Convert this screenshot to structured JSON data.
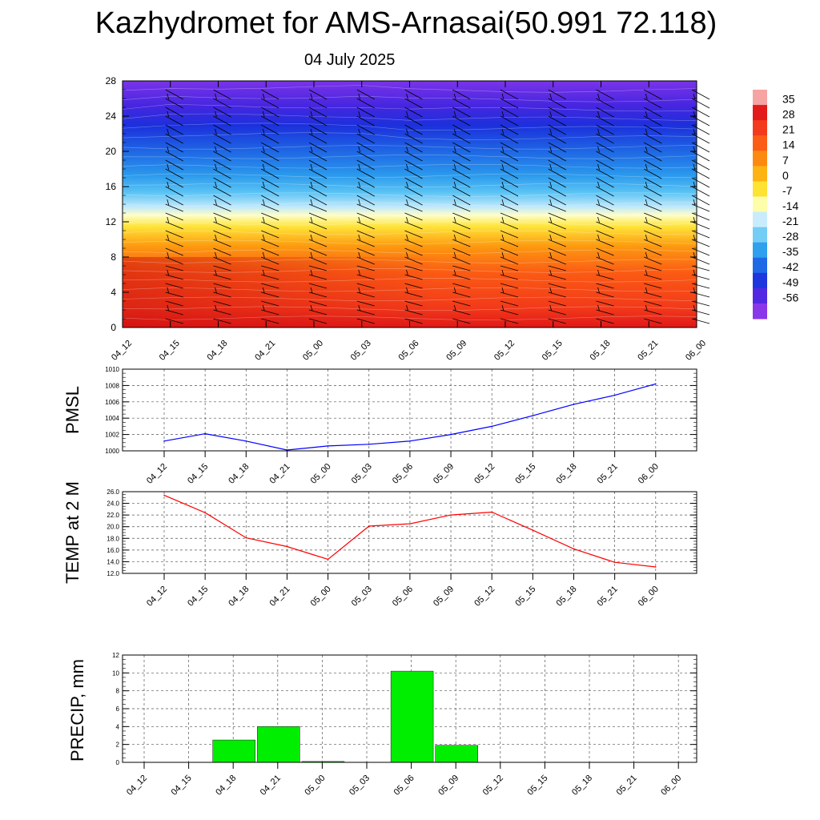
{
  "header": {
    "title": "Kazhydromet for AMS-Arnasai(50.991 72.118)",
    "subtitle": "04 July 2025"
  },
  "time_labels": [
    "04_12",
    "04_15",
    "04_18",
    "04_21",
    "05_00",
    "05_03",
    "05_06",
    "05_09",
    "05_12",
    "05_15",
    "05_18",
    "05_21",
    "06_00"
  ],
  "chart_data": [
    {
      "type": "heatmap",
      "title": "",
      "x": [
        "04_12",
        "04_15",
        "04_18",
        "04_21",
        "05_00",
        "05_03",
        "05_06",
        "05_09",
        "05_12",
        "05_15",
        "05_18",
        "05_21",
        "06_00"
      ],
      "ylim": [
        0,
        28
      ],
      "yticks": [
        0,
        4,
        8,
        12,
        16,
        20,
        24,
        28
      ],
      "colorbar_labels": [
        "35",
        "28",
        "21",
        "14",
        "7",
        "0",
        "-7",
        "-14",
        "-21",
        "-28",
        "-35",
        "-42",
        "-49",
        "-56"
      ],
      "colorbar_colors": [
        "#f5a3a3",
        "#e21a1a",
        "#f43a1c",
        "#fb5d16",
        "#fd8a10",
        "#fdb312",
        "#fee234",
        "#fefeaa",
        "#c9ecfc",
        "#74cdf5",
        "#2ea0ee",
        "#1f69e6",
        "#1e36de",
        "#5228e2",
        "#8a37ea"
      ],
      "overlay": "wind barbs",
      "grid": false
    },
    {
      "type": "line",
      "ylabel": "PMSL",
      "x": [
        "04_12",
        "04_15",
        "04_18",
        "04_21",
        "05_00",
        "05_03",
        "05_06",
        "05_09",
        "05_12",
        "05_15",
        "05_18",
        "05_21",
        "06_00"
      ],
      "ylim": [
        1000,
        1010
      ],
      "yticks": [
        "1000",
        "1002",
        "1004",
        "1006",
        "1008",
        "1010"
      ],
      "series": [
        {
          "values": [
            1001.2,
            1002.1,
            1001.2,
            1000.1,
            1000.6,
            1000.8,
            1001.2,
            1002.0,
            1003.0,
            1004.3,
            1005.7,
            1006.8,
            1008.2
          ],
          "color": "#0000ff"
        }
      ],
      "grid": true
    },
    {
      "type": "line",
      "ylabel": "TEMP at 2 M",
      "x": [
        "04_12",
        "04_15",
        "04_18",
        "04_21",
        "05_00",
        "05_03",
        "05_06",
        "05_09",
        "05_12",
        "05_15",
        "05_18",
        "05_21",
        "06_00"
      ],
      "ylim": [
        12,
        26
      ],
      "yticks": [
        "12.0",
        "14.0",
        "16.0",
        "18.0",
        "20.0",
        "22.0",
        "24.0",
        "26.0"
      ],
      "series": [
        {
          "values": [
            25.4,
            22.4,
            18.1,
            16.6,
            14.4,
            20.1,
            20.5,
            22.0,
            22.5,
            19.4,
            16.2,
            13.9,
            13.1
          ],
          "color": "#ff0000"
        }
      ],
      "grid": true
    },
    {
      "type": "bar",
      "ylabel": "PRECIP, mm",
      "categories": [
        "04_12",
        "04_15",
        "04_18",
        "04_21",
        "05_00",
        "05_03",
        "05_06",
        "05_09",
        "05_12",
        "05_15",
        "05_18",
        "05_21",
        "06_00"
      ],
      "ylim": [
        0,
        12
      ],
      "yticks": [
        "0",
        "2",
        "4",
        "6",
        "8",
        "10",
        "12"
      ],
      "values": [
        0,
        0,
        2.5,
        4.0,
        0.1,
        0,
        10.2,
        1.9,
        0,
        0,
        0,
        0,
        0
      ],
      "bar_color": "#00ee00",
      "grid": true
    }
  ]
}
